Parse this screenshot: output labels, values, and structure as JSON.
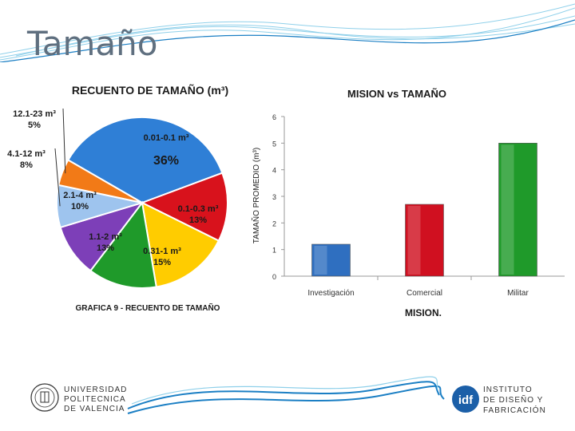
{
  "slide": {
    "title": "Tamaño"
  },
  "chart_data": [
    {
      "type": "pie",
      "title": "RECUENTO DE TAMAÑO (m³)",
      "caption": "GRAFICA 9 - RECUENTO DE TAMAÑO",
      "slices": [
        {
          "label": "0.01-0.1 m³",
          "value": 36,
          "pct_label": "36%",
          "color": "#2f7fd6"
        },
        {
          "label": "0.1-0.3 m³",
          "value": 13,
          "pct_label": "13%",
          "color": "#d8121c"
        },
        {
          "label": "0.31-1 m³",
          "value": 15,
          "pct_label": "15%",
          "color": "#ffcc00"
        },
        {
          "label": "1.1-2 m³",
          "value": 13,
          "pct_label": "13%",
          "color": "#1f9a2a"
        },
        {
          "label": "2.1-4 m³",
          "value": 10,
          "pct_label": "10%",
          "color": "#7d3fb8"
        },
        {
          "label": "4.1-12 m³",
          "value": 8,
          "pct_label": "8%",
          "color": "#9ec4ee"
        },
        {
          "label": "12.1-23 m³",
          "value": 5,
          "pct_label": "5%",
          "color": "#f27a17"
        }
      ]
    },
    {
      "type": "bar",
      "title": "MISION vs TAMAÑO",
      "xlabel": "MISION.",
      "ylabel": "TAMAÑO PROMEDIO (m³)",
      "ylim": [
        0,
        6
      ],
      "yticks": [
        "0",
        "1",
        "2",
        "3",
        "4",
        "5",
        "6"
      ],
      "grid": false,
      "categories": [
        "Investigación",
        "Comercial",
        "Militar"
      ],
      "values": [
        1.2,
        2.7,
        5.0
      ],
      "colors": [
        "#2f6fc0",
        "#d01020",
        "#1f9a2a"
      ]
    }
  ],
  "logos": {
    "upv": {
      "line1": "UNIVERSIDAD",
      "line2": "POLITECNICA",
      "line3": "DE VALENCIA"
    },
    "idf": {
      "mark": "idf",
      "line1": "INSTITUTO",
      "line2": "DE DISEÑO Y",
      "line3": "FABRICACIÓN"
    }
  },
  "colors": {
    "title": "#5f6f7f",
    "wave": "#1b7fc4",
    "wave_light": "#8fd0ea"
  }
}
